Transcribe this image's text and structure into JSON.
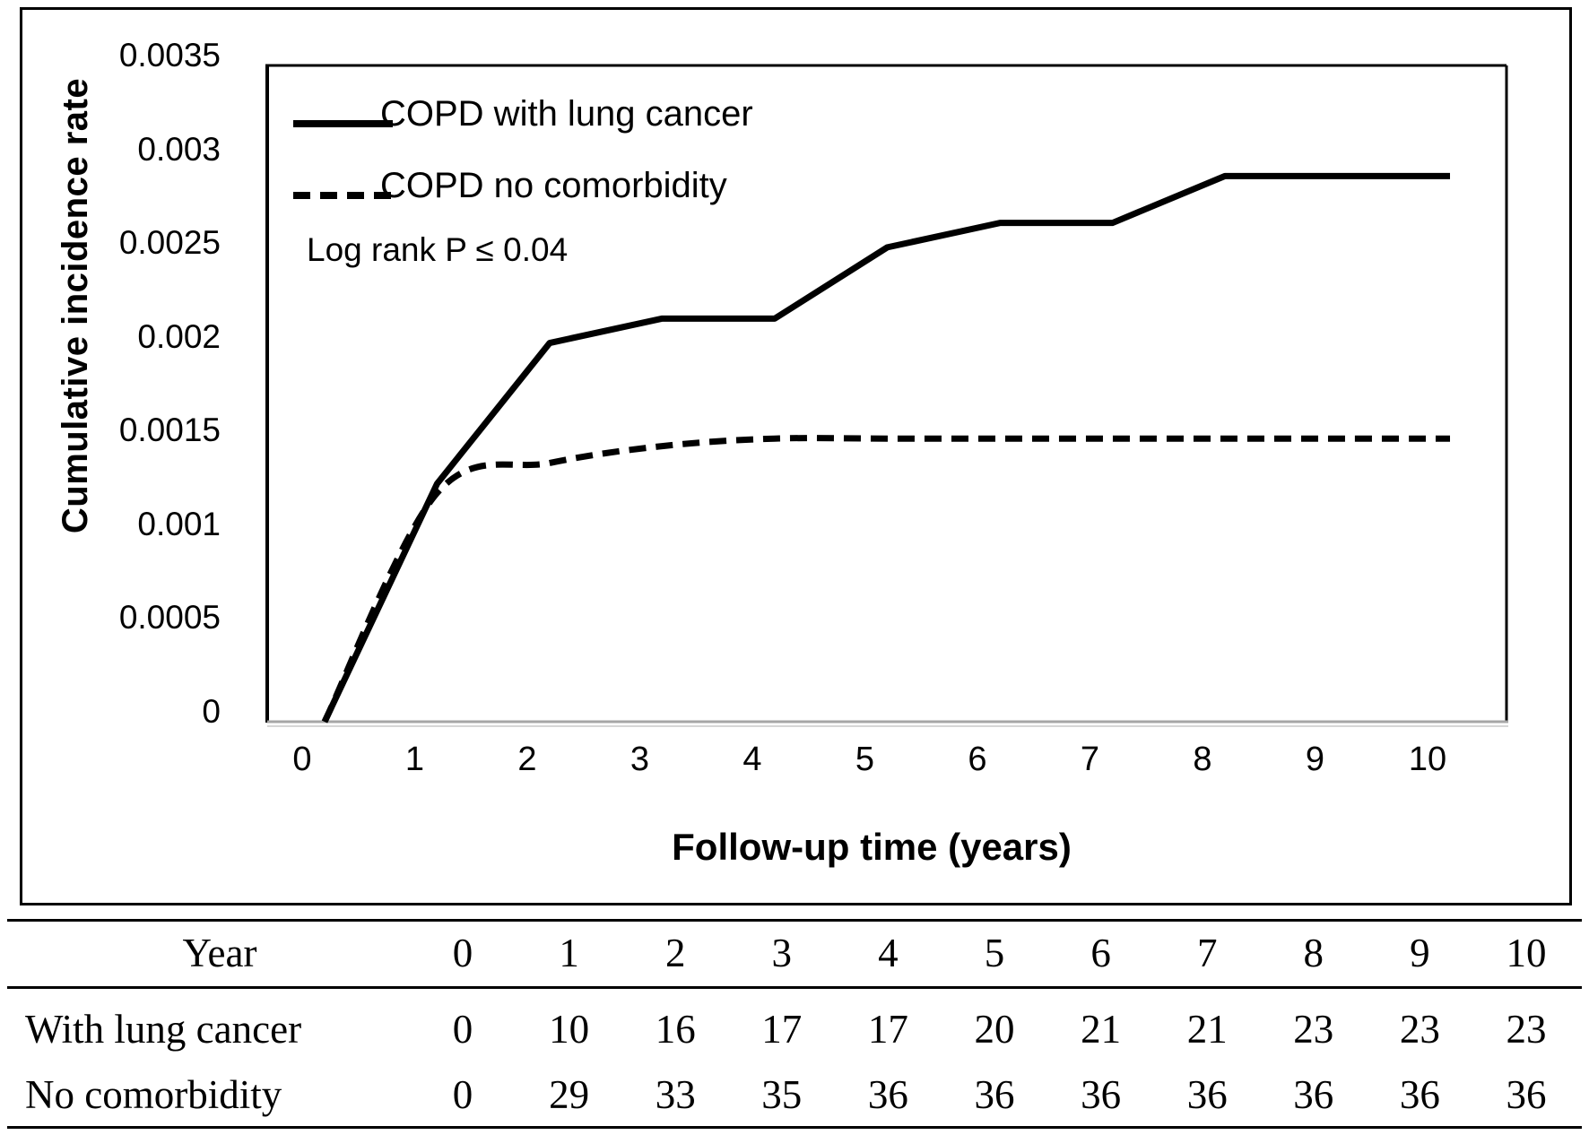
{
  "chart": {
    "y_axis_title": "Cumulative incidence rate",
    "x_axis_title": "Follow-up time (years)",
    "annotation": "Log rank P ≤ 0.04",
    "legend": [
      {
        "label": "COPD with lung cancer",
        "style": "solid"
      },
      {
        "label": "COPD no comorbidity",
        "style": "dashed"
      }
    ]
  },
  "chart_data": {
    "type": "line",
    "title": "",
    "xlabel": "Follow-up time (years)",
    "ylabel": "Cumulative incidence rate",
    "x": [
      0,
      1,
      2,
      3,
      4,
      5,
      6,
      7,
      8,
      9,
      10
    ],
    "ylim": [
      0,
      0.0035
    ],
    "y_ticks": [
      0,
      0.0005,
      0.001,
      0.0015,
      0.002,
      0.0025,
      0.003,
      0.0035
    ],
    "grid": false,
    "legend_position": "top-left",
    "annotation": "Log rank P ≤ 0.04",
    "series": [
      {
        "name": "COPD with lung cancer",
        "line": "solid",
        "values": [
          0,
          0.00127,
          0.00202,
          0.00215,
          0.00215,
          0.00253,
          0.00266,
          0.00266,
          0.00291,
          0.00291,
          0.00291
        ]
      },
      {
        "name": "COPD no comorbidity",
        "line": "dashed",
        "values": [
          0,
          0.00122,
          0.00138,
          0.00147,
          0.00151,
          0.00151,
          0.00151,
          0.00151,
          0.00151,
          0.00151,
          0.00151
        ]
      }
    ]
  },
  "table": {
    "header_label": "Year",
    "years": [
      0,
      1,
      2,
      3,
      4,
      5,
      6,
      7,
      8,
      9,
      10
    ],
    "rows": [
      {
        "label": "With lung cancer",
        "values": [
          0,
          10,
          16,
          17,
          17,
          20,
          21,
          21,
          23,
          23,
          23
        ]
      },
      {
        "label": "No comorbidity",
        "values": [
          0,
          29,
          33,
          35,
          36,
          36,
          36,
          36,
          36,
          36,
          36
        ]
      }
    ]
  }
}
